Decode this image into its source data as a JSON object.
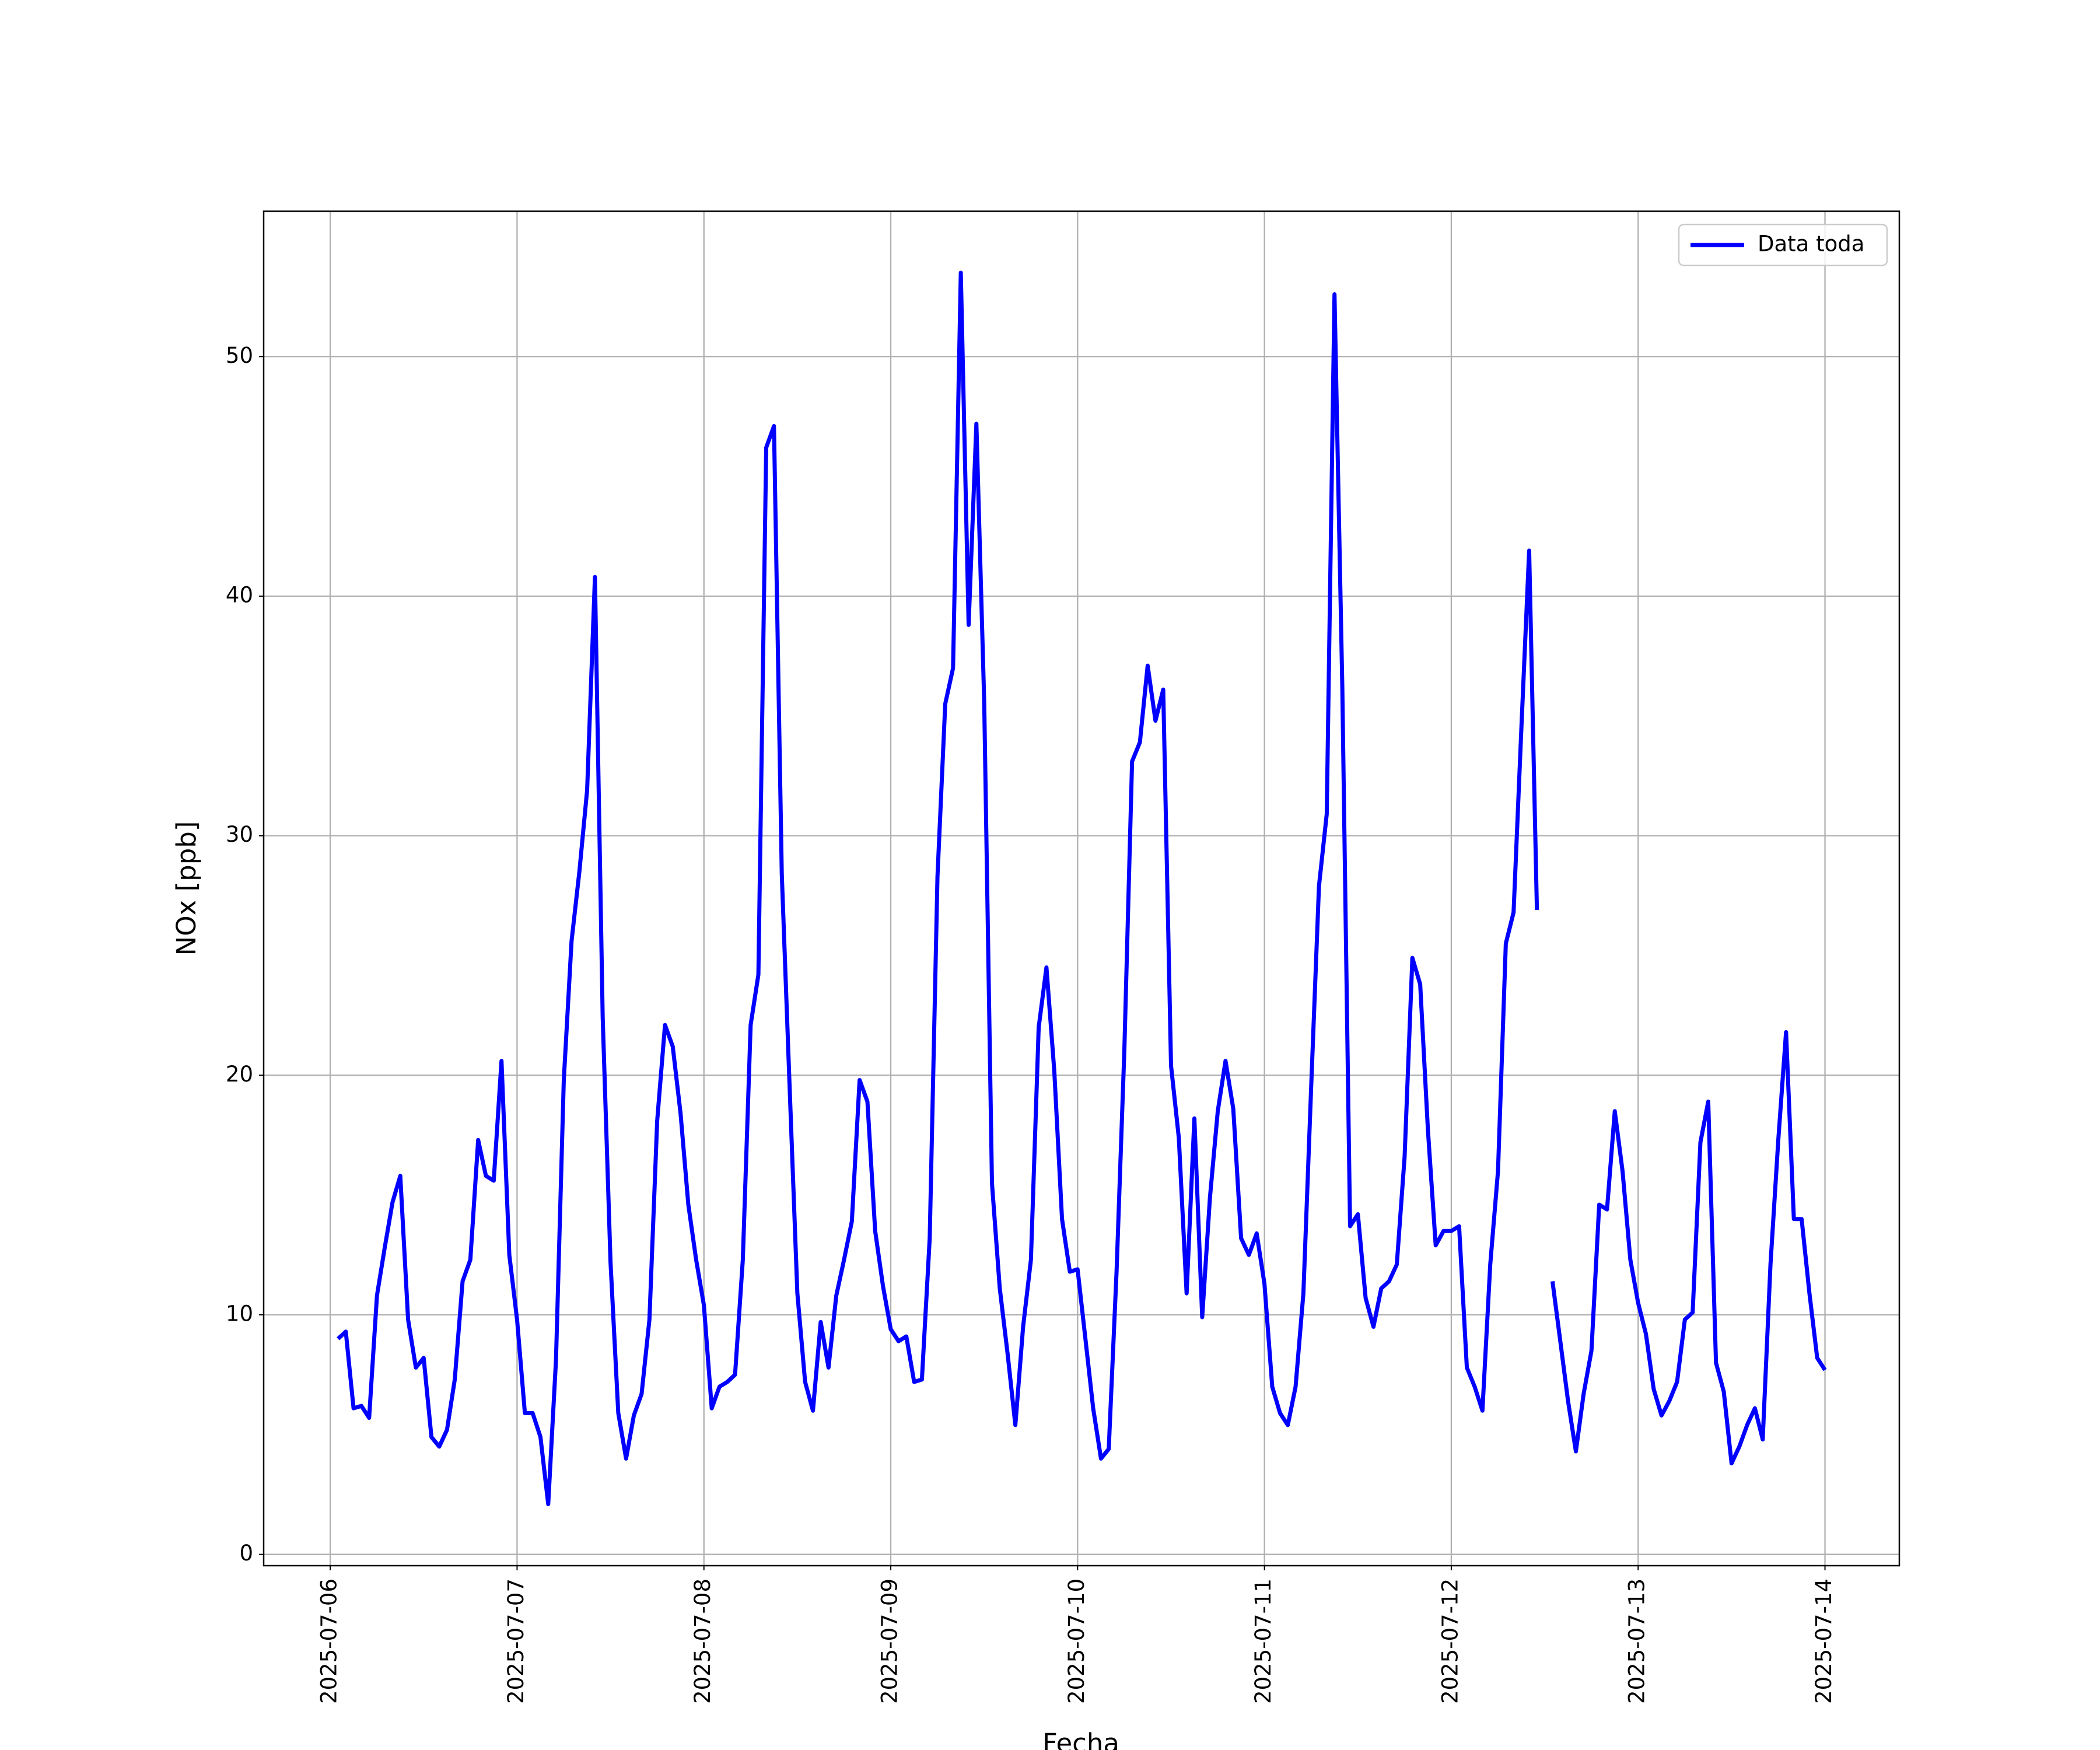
{
  "chart_data": {
    "type": "line",
    "x_label": "Fecha",
    "y_label": "NOx [ppb]",
    "grid": true,
    "legend": "upper right",
    "xlim": [
      "2025-07-05T15:27",
      "2025-07-14T09:33"
    ],
    "xticks": [
      "2025-07-06",
      "2025-07-07",
      "2025-07-08",
      "2025-07-09",
      "2025-07-10",
      "2025-07-11",
      "2025-07-12",
      "2025-07-13",
      "2025-07-14"
    ],
    "ylim": [
      -0.47,
      56.07
    ],
    "yticks": [
      0,
      10,
      20,
      30,
      40,
      50
    ],
    "x": [
      "2025-07-06T01:00",
      "2025-07-06T02:00",
      "2025-07-06T03:00",
      "2025-07-06T04:00",
      "2025-07-06T05:00",
      "2025-07-06T06:00",
      "2025-07-06T07:00",
      "2025-07-06T08:00",
      "2025-07-06T09:00",
      "2025-07-06T10:00",
      "2025-07-06T11:00",
      "2025-07-06T12:00",
      "2025-07-06T13:00",
      "2025-07-06T14:00",
      "2025-07-06T15:00",
      "2025-07-06T16:00",
      "2025-07-06T17:00",
      "2025-07-06T18:00",
      "2025-07-06T19:00",
      "2025-07-06T20:00",
      "2025-07-06T21:00",
      "2025-07-06T22:00",
      "2025-07-06T23:00",
      "2025-07-07T00:00",
      "2025-07-07T01:00",
      "2025-07-07T02:00",
      "2025-07-07T03:00",
      "2025-07-07T04:00",
      "2025-07-07T05:00",
      "2025-07-07T06:00",
      "2025-07-07T07:00",
      "2025-07-07T08:00",
      "2025-07-07T09:00",
      "2025-07-07T10:00",
      "2025-07-07T11:00",
      "2025-07-07T12:00",
      "2025-07-07T13:00",
      "2025-07-07T14:00",
      "2025-07-07T15:00",
      "2025-07-07T16:00",
      "2025-07-07T17:00",
      "2025-07-07T18:00",
      "2025-07-07T19:00",
      "2025-07-07T20:00",
      "2025-07-07T21:00",
      "2025-07-07T22:00",
      "2025-07-07T23:00",
      "2025-07-08T00:00",
      "2025-07-08T01:00",
      "2025-07-08T02:00",
      "2025-07-08T03:00",
      "2025-07-08T04:00",
      "2025-07-08T05:00",
      "2025-07-08T06:00",
      "2025-07-08T07:00",
      "2025-07-08T08:00",
      "2025-07-08T09:00",
      "2025-07-08T10:00",
      "2025-07-08T11:00",
      "2025-07-08T12:00",
      "2025-07-08T13:00",
      "2025-07-08T14:00",
      "2025-07-08T15:00",
      "2025-07-08T16:00",
      "2025-07-08T17:00",
      "2025-07-08T18:00",
      "2025-07-08T19:00",
      "2025-07-08T20:00",
      "2025-07-08T21:00",
      "2025-07-08T22:00",
      "2025-07-08T23:00",
      "2025-07-09T00:00",
      "2025-07-09T01:00",
      "2025-07-09T02:00",
      "2025-07-09T03:00",
      "2025-07-09T04:00",
      "2025-07-09T05:00",
      "2025-07-09T06:00",
      "2025-07-09T07:00",
      "2025-07-09T08:00",
      "2025-07-09T09:00",
      "2025-07-09T10:00",
      "2025-07-09T11:00",
      "2025-07-09T12:00",
      "2025-07-09T13:00",
      "2025-07-09T14:00",
      "2025-07-09T15:00",
      "2025-07-09T16:00",
      "2025-07-09T17:00",
      "2025-07-09T18:00",
      "2025-07-09T19:00",
      "2025-07-09T20:00",
      "2025-07-09T21:00",
      "2025-07-09T22:00",
      "2025-07-09T23:00",
      "2025-07-10T00:00",
      "2025-07-10T01:00",
      "2025-07-10T02:00",
      "2025-07-10T03:00",
      "2025-07-10T04:00",
      "2025-07-10T05:00",
      "2025-07-10T06:00",
      "2025-07-10T07:00",
      "2025-07-10T08:00",
      "2025-07-10T09:00",
      "2025-07-10T10:00",
      "2025-07-10T11:00",
      "2025-07-10T12:00",
      "2025-07-10T13:00",
      "2025-07-10T14:00",
      "2025-07-10T15:00",
      "2025-07-10T16:00",
      "2025-07-10T17:00",
      "2025-07-10T18:00",
      "2025-07-10T19:00",
      "2025-07-10T20:00",
      "2025-07-10T21:00",
      "2025-07-10T22:00",
      "2025-07-10T23:00",
      "2025-07-11T00:00",
      "2025-07-11T01:00",
      "2025-07-11T02:00",
      "2025-07-11T03:00",
      "2025-07-11T04:00",
      "2025-07-11T05:00",
      "2025-07-11T06:00",
      "2025-07-11T07:00",
      "2025-07-11T08:00",
      "2025-07-11T09:00",
      "2025-07-11T10:00",
      "2025-07-11T11:00",
      "2025-07-11T12:00",
      "2025-07-11T13:00",
      "2025-07-11T14:00",
      "2025-07-11T15:00",
      "2025-07-11T16:00",
      "2025-07-11T17:00",
      "2025-07-11T18:00",
      "2025-07-11T19:00",
      "2025-07-11T20:00",
      "2025-07-11T21:00",
      "2025-07-11T22:00",
      "2025-07-11T23:00",
      "2025-07-12T00:00",
      "2025-07-12T01:00",
      "2025-07-12T02:00",
      "2025-07-12T03:00",
      "2025-07-12T04:00",
      "2025-07-12T05:00",
      "2025-07-12T06:00",
      "2025-07-12T07:00",
      "2025-07-12T08:00",
      "2025-07-12T09:00",
      "2025-07-12T10:00",
      "2025-07-12T11:00",
      "2025-07-12T12:00",
      "2025-07-12T13:00",
      "2025-07-12T14:00",
      "2025-07-12T15:00",
      "2025-07-12T16:00",
      "2025-07-12T17:00",
      "2025-07-12T18:00",
      "2025-07-12T19:00",
      "2025-07-12T20:00",
      "2025-07-12T21:00",
      "2025-07-12T22:00",
      "2025-07-12T23:00",
      "2025-07-13T00:00",
      "2025-07-13T01:00",
      "2025-07-13T02:00",
      "2025-07-13T03:00",
      "2025-07-13T04:00",
      "2025-07-13T05:00",
      "2025-07-13T06:00",
      "2025-07-13T07:00",
      "2025-07-13T08:00",
      "2025-07-13T09:00",
      "2025-07-13T10:00",
      "2025-07-13T11:00",
      "2025-07-13T12:00",
      "2025-07-13T13:00",
      "2025-07-13T14:00",
      "2025-07-13T15:00",
      "2025-07-13T16:00",
      "2025-07-13T17:00",
      "2025-07-13T18:00",
      "2025-07-13T19:00",
      "2025-07-13T20:00",
      "2025-07-13T21:00",
      "2025-07-13T22:00",
      "2025-07-13T23:00",
      "2025-07-14T00:00"
    ],
    "series": [
      {
        "name": "Data toda",
        "color": "#0000ff",
        "values": [
          9.0,
          9.3,
          6.1,
          6.2,
          5.7,
          10.8,
          12.8,
          14.7,
          15.8,
          9.8,
          7.8,
          8.2,
          4.9,
          4.5,
          5.2,
          7.3,
          11.4,
          12.3,
          17.3,
          15.8,
          15.6,
          20.6,
          12.5,
          9.8,
          5.9,
          5.9,
          4.9,
          2.1,
          8.1,
          19.8,
          25.6,
          28.5,
          31.9,
          40.8,
          22.4,
          12.2,
          5.9,
          4.0,
          5.8,
          6.7,
          9.8,
          18.1,
          22.1,
          21.2,
          18.4,
          14.6,
          12.3,
          10.4,
          6.1,
          7.0,
          7.2,
          7.5,
          12.3,
          22.1,
          24.2,
          46.2,
          47.1,
          28.4,
          19.6,
          10.9,
          7.2,
          6.0,
          9.7,
          7.8,
          10.8,
          12.3,
          13.9,
          19.8,
          18.9,
          13.5,
          11.2,
          9.4,
          8.9,
          9.1,
          7.2,
          7.3,
          13.2,
          28.3,
          35.5,
          37.0,
          53.5,
          38.8,
          47.2,
          35.6,
          15.5,
          11.1,
          8.4,
          5.4,
          9.5,
          12.3,
          22.0,
          24.5,
          20.2,
          14.0,
          11.8,
          11.9,
          9.0,
          6.1,
          4.0,
          4.4,
          11.8,
          21.0,
          33.1,
          33.9,
          37.1,
          34.8,
          36.1,
          20.4,
          17.4,
          10.9,
          18.2,
          9.9,
          14.9,
          18.5,
          20.6,
          18.6,
          13.2,
          12.5,
          13.4,
          11.3,
          7.0,
          5.9,
          5.4,
          7.0,
          10.9,
          19.5,
          27.9,
          30.9,
          52.6,
          36.2,
          13.7,
          14.2,
          10.7,
          9.5,
          11.1,
          11.4,
          12.1,
          16.6,
          24.9,
          23.8,
          17.7,
          12.9,
          13.5,
          13.5,
          13.7,
          7.8,
          7.0,
          6.0,
          12.1,
          16.0,
          25.5,
          26.8,
          34.5,
          41.9,
          26.9,
          null,
          11.4,
          8.9,
          6.4,
          4.3,
          6.7,
          8.5,
          14.6,
          14.4,
          18.5,
          16.0,
          12.3,
          10.5,
          9.2,
          6.9,
          5.8,
          6.4,
          7.2,
          9.8,
          10.1,
          17.2,
          18.9,
          8.0,
          6.8,
          3.8,
          4.5,
          5.4,
          6.1,
          4.8,
          12.1,
          17.3,
          21.8,
          14.0,
          14.0,
          10.9,
          8.2,
          7.7
        ]
      }
    ]
  }
}
